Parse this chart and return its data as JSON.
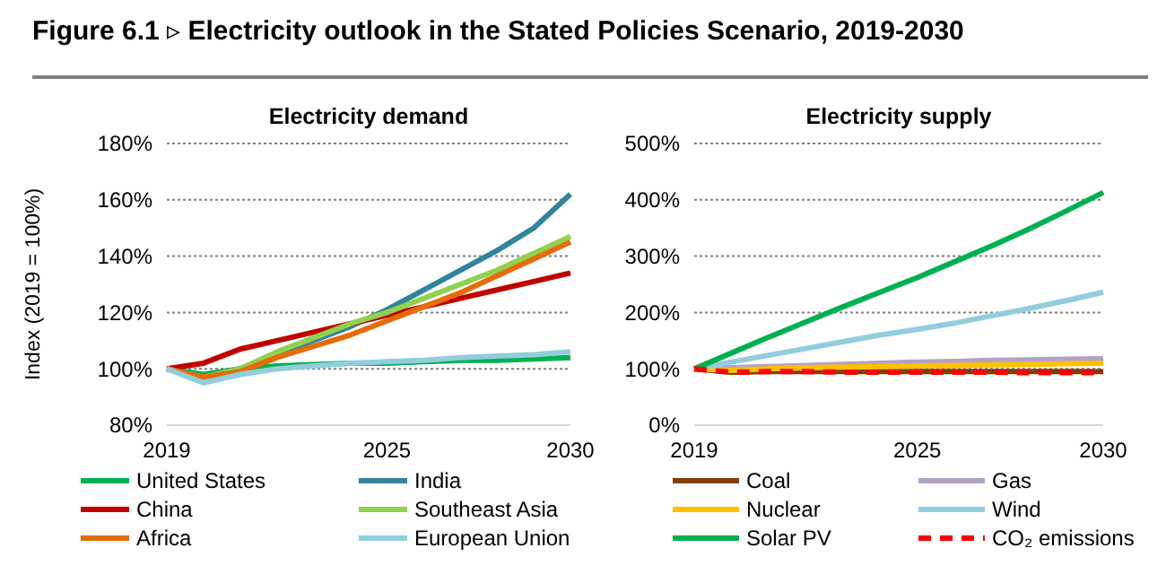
{
  "chart_data": [
    {
      "type": "line",
      "title": "Electricity demand",
      "ylabel": "Index (2019 = 100%)",
      "annotations": [
        "Figure 6.1 ▹ Electricity outlook in the Stated Policies Scenario, 2019-2030"
      ],
      "x": [
        2019,
        2020,
        2021,
        2022,
        2023,
        2024,
        2025,
        2026,
        2027,
        2028,
        2029,
        2030
      ],
      "xlim": [
        2019,
        2030
      ],
      "xticks": [
        2019,
        2025,
        2030
      ],
      "ylim": [
        80,
        180
      ],
      "yticks": [
        {
          "value": 80,
          "label": "80%"
        },
        {
          "value": 100,
          "label": "100%"
        },
        {
          "value": 120,
          "label": "120%"
        },
        {
          "value": 140,
          "label": "140%"
        },
        {
          "value": 160,
          "label": "160%"
        },
        {
          "value": 180,
          "label": "180%"
        }
      ],
      "grid": "y",
      "legend": "bottom",
      "series": [
        {
          "name": "United States",
          "color": "#00b050",
          "values": [
            100,
            98,
            100,
            101,
            101.5,
            102,
            102,
            102.5,
            103,
            103,
            103.5,
            104
          ]
        },
        {
          "name": "India",
          "color": "#31849b",
          "values": [
            100,
            97,
            100,
            105,
            110,
            115,
            121,
            128,
            135,
            142,
            150,
            162
          ]
        },
        {
          "name": "China",
          "color": "#c00000",
          "values": [
            100,
            102,
            107,
            110,
            113,
            116,
            119,
            122,
            125,
            128,
            131,
            134
          ]
        },
        {
          "name": "Southeast Asia",
          "color": "#92d050",
          "values": [
            100,
            97,
            100,
            106,
            111,
            116,
            120,
            125,
            130,
            135,
            141,
            147
          ]
        },
        {
          "name": "Africa",
          "color": "#e46c0a",
          "values": [
            100,
            97,
            99,
            104,
            108,
            112,
            117,
            122,
            127,
            133,
            139,
            145
          ]
        },
        {
          "name": "European Union",
          "color": "#92cddc",
          "values": [
            100,
            95,
            98,
            100,
            101,
            102,
            102.5,
            103,
            104,
            104.5,
            105,
            106
          ]
        }
      ]
    },
    {
      "type": "line",
      "title": "Electricity supply",
      "x": [
        2019,
        2020,
        2021,
        2022,
        2023,
        2024,
        2025,
        2026,
        2027,
        2028,
        2029,
        2030
      ],
      "xlim": [
        2019,
        2030
      ],
      "xticks": [
        2019,
        2025,
        2030
      ],
      "ylim": [
        0,
        500
      ],
      "yticks": [
        {
          "value": 0,
          "label": "0%"
        },
        {
          "value": 100,
          "label": "100%"
        },
        {
          "value": 200,
          "label": "200%"
        },
        {
          "value": 300,
          "label": "300%"
        },
        {
          "value": 400,
          "label": "400%"
        },
        {
          "value": 500,
          "label": "500%"
        }
      ],
      "grid": "y",
      "legend": "bottom",
      "series": [
        {
          "name": "Coal",
          "color": "#843c0c",
          "values": [
            100,
            94,
            95,
            95,
            95,
            95,
            95,
            95,
            95,
            95,
            95,
            95
          ]
        },
        {
          "name": "Gas",
          "color": "#b3a2c7",
          "values": [
            100,
            102,
            104,
            106,
            108,
            110,
            112,
            113,
            115,
            116,
            117,
            118
          ]
        },
        {
          "name": "Nuclear",
          "color": "#ffc000",
          "values": [
            100,
            97,
            100,
            102,
            103,
            104,
            105,
            106,
            107,
            108,
            109,
            110
          ]
        },
        {
          "name": "Wind",
          "color": "#93cddd",
          "values": [
            100,
            112,
            124,
            136,
            148,
            160,
            170,
            181,
            194,
            207,
            221,
            236
          ]
        },
        {
          "name": "Solar PV",
          "color": "#00b050",
          "values": [
            100,
            128,
            156,
            183,
            210,
            236,
            262,
            290,
            318,
            348,
            380,
            413
          ]
        },
        {
          "name": "CO₂ emissions",
          "color": "#ff0000",
          "line_style": "dashed",
          "values": [
            100,
            94,
            95,
            95,
            94,
            94,
            94,
            94,
            94,
            93,
            93,
            93
          ]
        }
      ]
    }
  ]
}
